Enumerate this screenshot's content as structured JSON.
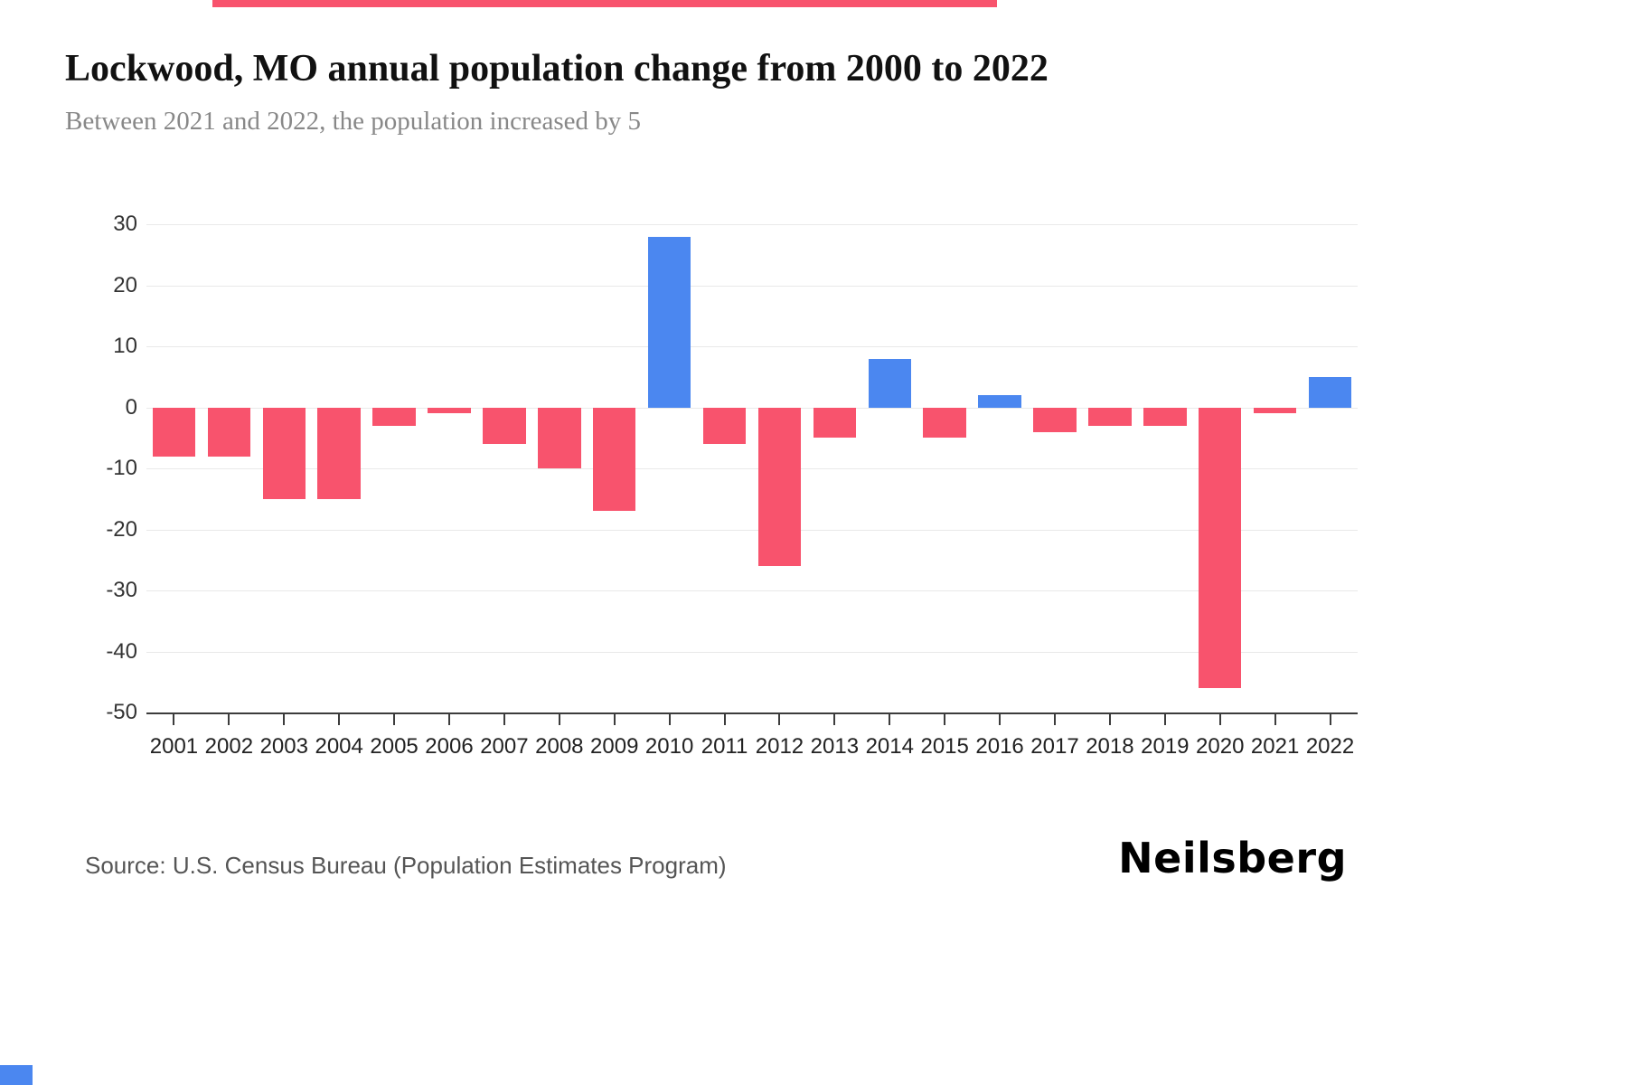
{
  "page": {
    "title": "Lockwood, MO annual population change from 2000 to 2022",
    "subtitle": "Between 2021 and 2022, the population increased by 5",
    "source": "Source: U.S. Census Bureau (Population Estimates Program)",
    "logo": "Neilsberg"
  },
  "colors": {
    "positive": "#4b87f0",
    "negative": "#f8536d",
    "top_accent": "#f8536d",
    "bottom_accent": "#4b87f0",
    "gridline": "#e9e9e9",
    "axis": "#3c3c3c"
  },
  "chart_data": {
    "type": "bar",
    "title": "Lockwood, MO annual population change from 2000 to 2022",
    "subtitle": "Between 2021 and 2022, the population increased by 5",
    "categories": [
      "2001",
      "2002",
      "2003",
      "2004",
      "2005",
      "2006",
      "2007",
      "2008",
      "2009",
      "2010",
      "2011",
      "2012",
      "2013",
      "2014",
      "2015",
      "2016",
      "2017",
      "2018",
      "2019",
      "2020",
      "2021",
      "2022"
    ],
    "values": [
      -8,
      -8,
      -15,
      -15,
      -3,
      -1,
      -6,
      -10,
      -17,
      28,
      -6,
      -26,
      -5,
      8,
      -5,
      2,
      -4,
      -3,
      -3,
      -46,
      -1,
      5
    ],
    "xlabel": "",
    "ylabel": "",
    "ylim": [
      -50,
      30
    ],
    "ytick_step": 10,
    "grid": true,
    "legend": false,
    "positive_color": "#4b87f0",
    "negative_color": "#f8536d"
  }
}
